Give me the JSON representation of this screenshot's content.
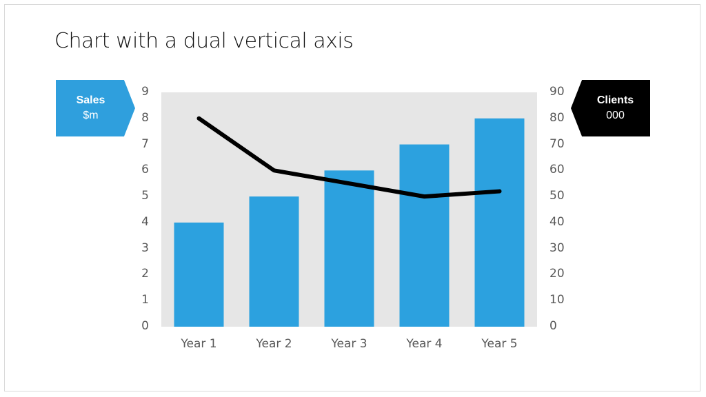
{
  "title": "Chart with a dual vertical axis",
  "left_tag": {
    "line1": "Sales",
    "line2": "$m",
    "color": "#2f9fdd"
  },
  "right_tag": {
    "line1": "Clients",
    "line2": "000",
    "color": "#000000"
  },
  "colors": {
    "bar": "#2ca1df",
    "line": "#000000",
    "plot_bg": "#e6e6e6"
  },
  "chart_data": {
    "type": "bar+line",
    "title": "Chart with a dual vertical axis",
    "categories": [
      "Year 1",
      "Year 2",
      "Year 3",
      "Year 4",
      "Year 5"
    ],
    "series": [
      {
        "name": "Sales ($m)",
        "type": "bar",
        "axis": "left",
        "values": [
          4,
          5,
          6,
          7,
          8
        ]
      },
      {
        "name": "Clients (000)",
        "type": "line",
        "axis": "right",
        "values": [
          80,
          60,
          55,
          50,
          52
        ]
      }
    ],
    "left_axis": {
      "label": "Sales $m",
      "ylim": [
        0,
        9
      ],
      "ticks": [
        "0",
        "1",
        "2",
        "3",
        "4",
        "5",
        "6",
        "7",
        "8",
        "9"
      ]
    },
    "right_axis": {
      "label": "Clients 000",
      "ylim": [
        0,
        90
      ],
      "ticks": [
        "0",
        "10",
        "20",
        "30",
        "40",
        "50",
        "60",
        "70",
        "80",
        "90"
      ]
    },
    "grid": false,
    "legend": "none"
  }
}
